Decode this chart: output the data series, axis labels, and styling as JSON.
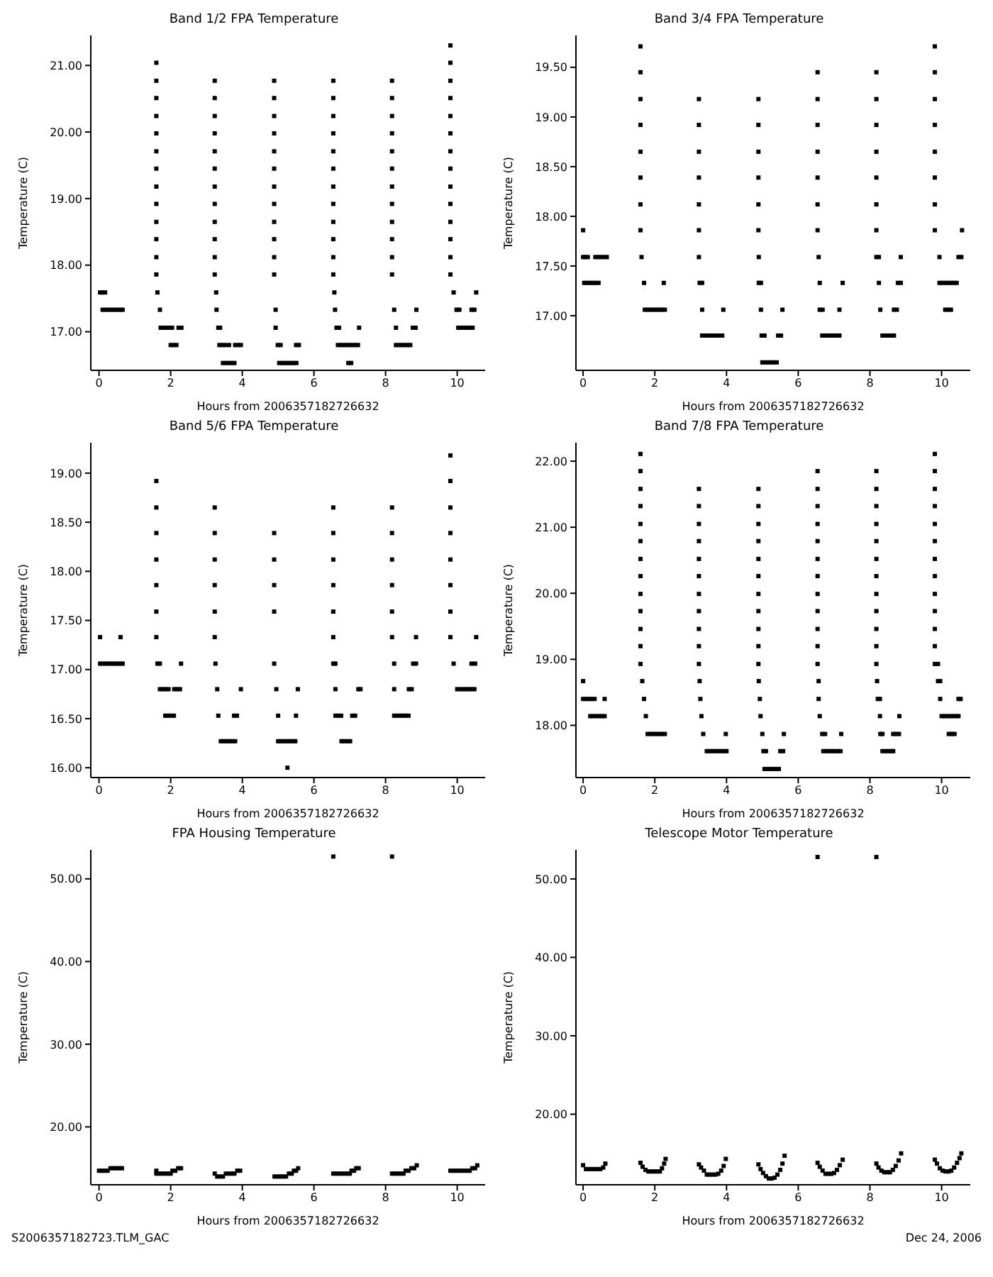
{
  "chart_data": [
    {
      "type": "scatter",
      "title": "Band 1/2 FPA Temperature",
      "xlabel": "Hours from 2006357182726632",
      "ylabel": "Temperature (C)",
      "marker": "square",
      "xlim": [
        -0.23,
        10.78
      ],
      "xticks": [
        0,
        2,
        4,
        6,
        8,
        10
      ],
      "ylim": [
        16.42,
        21.45
      ],
      "yticks": [
        {
          "value": 17,
          "label": "17.00"
        },
        {
          "value": 18,
          "label": "18.00"
        },
        {
          "value": 19,
          "label": "19.00"
        },
        {
          "value": 20,
          "label": "20.00"
        },
        {
          "value": 21,
          "label": "21.00"
        }
      ],
      "series": [
        {
          "color": "#000000",
          "x": [
            0.03,
            0.1,
            0.17,
            0.1,
            0.18,
            0.26,
            0.34,
            0.42,
            0.5,
            0.58,
            0.66,
            1.6,
            1.6,
            1.6,
            1.6,
            1.6,
            1.6,
            1.6,
            1.6,
            1.6,
            1.6,
            1.6,
            1.6,
            1.6,
            1.63,
            1.7,
            1.72,
            1.8,
            1.88,
            1.96,
            2.04,
            2.22,
            2.3,
            2.0,
            2.08,
            2.16,
            3.23,
            3.23,
            3.23,
            3.23,
            3.23,
            3.23,
            3.23,
            3.23,
            3.23,
            3.23,
            3.23,
            3.23,
            3.27,
            3.28,
            3.33,
            3.38,
            3.36,
            3.44,
            3.52,
            3.63,
            3.8,
            3.88,
            3.96,
            3.46,
            3.54,
            3.62,
            3.7,
            3.78,
            4.89,
            4.89,
            4.89,
            4.89,
            4.89,
            4.89,
            4.89,
            4.89,
            4.89,
            4.89,
            4.89,
            4.89,
            4.93,
            4.93,
            4.99,
            5.07,
            5.5,
            5.58,
            5.03,
            5.11,
            5.19,
            5.27,
            5.35,
            5.43,
            5.51,
            6.54,
            6.54,
            6.54,
            6.54,
            6.54,
            6.54,
            6.54,
            6.54,
            6.54,
            6.54,
            6.54,
            6.54,
            6.57,
            6.59,
            6.63,
            6.7,
            7.26,
            6.67,
            6.75,
            6.83,
            6.91,
            6.99,
            7.07,
            7.15,
            7.23,
            6.96,
            7.04,
            8.18,
            8.18,
            8.18,
            8.18,
            8.18,
            8.18,
            8.18,
            8.18,
            8.18,
            8.18,
            8.18,
            8.18,
            8.24,
            8.29,
            8.76,
            8.84,
            8.86,
            8.29,
            8.37,
            8.45,
            8.53,
            8.61,
            8.69,
            9.81,
            9.81,
            9.81,
            9.81,
            9.81,
            9.81,
            9.81,
            9.81,
            9.81,
            9.81,
            9.81,
            9.81,
            9.81,
            9.81,
            9.9,
            9.98,
            10.06,
            10.4,
            10.48,
            10.03,
            10.11,
            10.19,
            10.27,
            10.35,
            10.43,
            10.53
          ],
          "values": [
            17.59,
            17.59,
            17.59,
            17.33,
            17.33,
            17.33,
            17.33,
            17.33,
            17.33,
            17.33,
            17.33,
            21.04,
            20.77,
            20.51,
            20.24,
            19.98,
            19.71,
            19.45,
            19.18,
            18.92,
            18.65,
            18.39,
            18.12,
            17.86,
            17.59,
            17.33,
            17.06,
            17.06,
            17.06,
            17.06,
            17.06,
            17.06,
            17.06,
            16.8,
            16.8,
            16.8,
            20.77,
            20.51,
            20.24,
            19.98,
            19.71,
            19.45,
            19.18,
            18.92,
            18.65,
            18.39,
            18.12,
            17.86,
            17.59,
            17.33,
            17.06,
            17.06,
            16.8,
            16.8,
            16.8,
            16.8,
            16.8,
            16.8,
            16.8,
            16.53,
            16.53,
            16.53,
            16.53,
            16.53,
            20.77,
            20.51,
            20.24,
            19.98,
            19.71,
            19.45,
            19.18,
            18.92,
            18.65,
            18.39,
            18.12,
            17.86,
            17.33,
            17.06,
            16.8,
            16.8,
            16.8,
            16.8,
            16.53,
            16.53,
            16.53,
            16.53,
            16.53,
            16.53,
            16.53,
            20.77,
            20.51,
            20.24,
            19.98,
            19.71,
            19.45,
            19.18,
            18.92,
            18.65,
            18.39,
            18.12,
            17.86,
            17.59,
            17.33,
            17.06,
            17.06,
            17.06,
            16.8,
            16.8,
            16.8,
            16.8,
            16.8,
            16.8,
            16.8,
            16.8,
            16.53,
            16.53,
            20.77,
            20.51,
            20.24,
            19.98,
            19.71,
            19.45,
            19.18,
            18.92,
            18.65,
            18.39,
            18.12,
            17.86,
            17.33,
            17.06,
            17.06,
            17.06,
            17.33,
            16.8,
            16.8,
            16.8,
            16.8,
            16.8,
            16.8,
            21.3,
            21.04,
            20.77,
            20.51,
            20.24,
            19.98,
            19.71,
            19.45,
            19.18,
            18.92,
            18.65,
            18.39,
            18.12,
            17.86,
            17.59,
            17.33,
            17.33,
            17.33,
            17.33,
            17.06,
            17.06,
            17.06,
            17.06,
            17.06,
            17.06,
            17.59
          ]
        }
      ]
    },
    {
      "type": "scatter",
      "title": "Band 3/4 FPA Temperature",
      "xlabel": "Hours from 2006357182726632",
      "ylabel": "Temperature (C)",
      "marker": "square",
      "xlim": [
        -0.2,
        10.8
      ],
      "xticks": [
        0,
        2,
        4,
        6,
        8,
        10
      ],
      "ylim": [
        16.45,
        19.82
      ],
      "yticks": [
        {
          "value": 17,
          "label": "17.00"
        },
        {
          "value": 17.5,
          "label": "17.50"
        },
        {
          "value": 18,
          "label": "18.00"
        },
        {
          "value": 18.5,
          "label": "18.50"
        },
        {
          "value": 19,
          "label": "19.00"
        },
        {
          "value": 19.5,
          "label": "19.50"
        }
      ],
      "series": [
        {
          "color": "#000000",
          "x": [
            0,
            0,
            0.06,
            0.13,
            0.34,
            0.42,
            0.5,
            0.58,
            0.66,
            0.03,
            0.11,
            0.19,
            0.27,
            0.35,
            0.43,
            1.6,
            1.6,
            1.6,
            1.6,
            1.6,
            1.6,
            1.6,
            1.6,
            1.63,
            1.7,
            2.25,
            1.72,
            1.8,
            1.88,
            1.96,
            2.04,
            2.12,
            2.2,
            2.28,
            3.23,
            3.23,
            3.23,
            3.23,
            3.23,
            3.23,
            3.23,
            3.25,
            3.32,
            3.32,
            3.91,
            3.32,
            3.4,
            3.48,
            3.56,
            3.64,
            3.72,
            3.8,
            3.88,
            4.89,
            4.89,
            4.89,
            4.89,
            4.89,
            4.89,
            4.9,
            4.9,
            4.96,
            4.96,
            5.56,
            4.98,
            5.06,
            5.44,
            5.52,
            5.0,
            5.08,
            5.16,
            5.24,
            5.32,
            5.4,
            6.54,
            6.54,
            6.54,
            6.54,
            6.54,
            6.54,
            6.54,
            6.57,
            6.6,
            7.24,
            6.6,
            6.68,
            7.15,
            6.67,
            6.75,
            6.83,
            6.91,
            6.99,
            7.07,
            7.15,
            8.18,
            8.18,
            8.18,
            8.18,
            8.18,
            8.18,
            8.18,
            8.18,
            8.25,
            8.86,
            8.25,
            8.78,
            8.86,
            8.29,
            8.67,
            8.75,
            8.35,
            8.43,
            8.51,
            8.59,
            8.67,
            9.81,
            9.81,
            9.81,
            9.81,
            9.81,
            9.81,
            9.81,
            9.81,
            9.94,
            10.47,
            10.55,
            10.57,
            9.94,
            10.02,
            10.1,
            10.18,
            10.26,
            10.34,
            10.42,
            10.1,
            10.18,
            10.26
          ],
          "values": [
            17.86,
            17.59,
            17.59,
            17.59,
            17.59,
            17.59,
            17.59,
            17.59,
            17.59,
            17.33,
            17.33,
            17.33,
            17.33,
            17.33,
            17.33,
            19.71,
            19.45,
            19.18,
            18.92,
            18.65,
            18.39,
            18.12,
            17.86,
            17.59,
            17.33,
            17.33,
            17.06,
            17.06,
            17.06,
            17.06,
            17.06,
            17.06,
            17.06,
            17.06,
            19.18,
            18.92,
            18.65,
            18.39,
            18.12,
            17.86,
            17.59,
            17.33,
            17.33,
            17.06,
            17.06,
            16.8,
            16.8,
            16.8,
            16.8,
            16.8,
            16.8,
            16.8,
            16.8,
            19.18,
            18.92,
            18.65,
            18.39,
            18.12,
            17.86,
            17.59,
            17.33,
            17.33,
            17.06,
            17.06,
            16.8,
            16.8,
            16.8,
            16.8,
            16.53,
            16.53,
            16.53,
            16.53,
            16.53,
            16.53,
            19.45,
            19.18,
            18.92,
            18.65,
            18.39,
            18.12,
            17.86,
            17.59,
            17.33,
            17.33,
            17.06,
            17.06,
            17.06,
            16.8,
            16.8,
            16.8,
            16.8,
            16.8,
            16.8,
            16.8,
            19.45,
            19.18,
            18.92,
            18.65,
            18.39,
            18.12,
            17.86,
            17.59,
            17.59,
            17.59,
            17.33,
            17.33,
            17.33,
            17.06,
            17.06,
            17.06,
            16.8,
            16.8,
            16.8,
            16.8,
            16.8,
            19.71,
            19.45,
            19.18,
            18.92,
            18.65,
            18.39,
            18.12,
            17.86,
            17.59,
            17.59,
            17.59,
            17.86,
            17.33,
            17.33,
            17.33,
            17.33,
            17.33,
            17.33,
            17.33,
            17.06,
            17.06,
            17.06
          ]
        }
      ]
    },
    {
      "type": "scatter",
      "title": "Band 5/6 FPA Temperature",
      "xlabel": "Hours from 2006357182726632",
      "ylabel": "Temperature (C)",
      "marker": "square",
      "xlim": [
        -0.23,
        10.78
      ],
      "xticks": [
        0,
        2,
        4,
        6,
        8,
        10
      ],
      "ylim": [
        15.9,
        19.31
      ],
      "yticks": [
        {
          "value": 16,
          "label": "16.00"
        },
        {
          "value": 16.5,
          "label": "16.50"
        },
        {
          "value": 17,
          "label": "17.00"
        },
        {
          "value": 17.5,
          "label": "17.50"
        },
        {
          "value": 18,
          "label": "18.00"
        },
        {
          "value": 18.5,
          "label": "18.50"
        },
        {
          "value": 19,
          "label": "19.00"
        }
      ],
      "series": [
        {
          "color": "#000000",
          "x": [
            0.03,
            0.6,
            0.03,
            0.11,
            0.19,
            0.27,
            0.35,
            0.43,
            0.51,
            0.59,
            0.66,
            1.6,
            1.6,
            1.6,
            1.6,
            1.6,
            1.6,
            1.6,
            1.63,
            1.7,
            2.29,
            1.7,
            1.78,
            1.86,
            1.94,
            2.1,
            2.18,
            2.26,
            1.85,
            1.93,
            2.01,
            2.09,
            3.23,
            3.23,
            3.23,
            3.23,
            3.23,
            3.23,
            3.25,
            3.3,
            3.96,
            3.33,
            3.77,
            3.85,
            3.4,
            3.48,
            3.56,
            3.64,
            3.72,
            3.8,
            4.89,
            4.89,
            4.89,
            4.89,
            4.89,
            4.95,
            5.55,
            5.0,
            5.5,
            5.0,
            5.08,
            5.16,
            5.24,
            5.32,
            5.4,
            5.48,
            5.26,
            6.54,
            6.54,
            6.54,
            6.54,
            6.54,
            6.54,
            6.54,
            6.6,
            6.6,
            7.24,
            7.3,
            6.6,
            6.68,
            6.76,
            7.07,
            7.15,
            6.77,
            6.85,
            6.93,
            7.01,
            8.18,
            8.18,
            8.18,
            8.18,
            8.18,
            8.18,
            8.24,
            8.24,
            8.65,
            8.73,
            8.24,
            8.32,
            8.4,
            8.48,
            8.56,
            8.64,
            8.77,
            8.85,
            8.85,
            9.81,
            9.81,
            9.81,
            9.81,
            9.81,
            9.81,
            9.81,
            9.81,
            9.9,
            10.0,
            10.08,
            10.16,
            10.24,
            10.32,
            10.4,
            10.48,
            10.4,
            10.5,
            10.53
          ],
          "values": [
            17.33,
            17.33,
            17.06,
            17.06,
            17.06,
            17.06,
            17.06,
            17.06,
            17.06,
            17.06,
            17.06,
            18.92,
            18.65,
            18.39,
            18.12,
            17.86,
            17.59,
            17.33,
            17.06,
            17.06,
            17.06,
            16.8,
            16.8,
            16.8,
            16.8,
            16.8,
            16.8,
            16.8,
            16.53,
            16.53,
            16.53,
            16.53,
            18.65,
            18.39,
            18.12,
            17.86,
            17.59,
            17.33,
            17.06,
            16.8,
            16.8,
            16.53,
            16.53,
            16.53,
            16.27,
            16.27,
            16.27,
            16.27,
            16.27,
            16.27,
            18.39,
            18.12,
            17.86,
            17.59,
            17.06,
            16.8,
            16.8,
            16.53,
            16.53,
            16.27,
            16.27,
            16.27,
            16.27,
            16.27,
            16.27,
            16.27,
            16.0,
            18.65,
            18.39,
            18.12,
            17.86,
            17.59,
            17.33,
            17.06,
            17.06,
            16.8,
            16.8,
            16.8,
            16.53,
            16.53,
            16.53,
            16.53,
            16.53,
            16.27,
            16.27,
            16.27,
            16.27,
            18.65,
            18.39,
            18.12,
            17.86,
            17.59,
            17.33,
            17.06,
            16.8,
            16.8,
            16.8,
            16.53,
            16.53,
            16.53,
            16.53,
            16.53,
            16.53,
            17.06,
            17.06,
            17.33,
            19.18,
            18.92,
            18.65,
            18.39,
            18.12,
            17.86,
            17.59,
            17.33,
            17.06,
            16.8,
            16.8,
            16.8,
            16.8,
            16.8,
            16.8,
            16.8,
            17.06,
            17.06,
            17.33
          ]
        }
      ]
    },
    {
      "type": "scatter",
      "title": "Band 7/8 FPA Temperature",
      "xlabel": "Hours from 2006357182726632",
      "ylabel": "Temperature (C)",
      "marker": "square",
      "xlim": [
        -0.2,
        10.8
      ],
      "xticks": [
        0,
        2,
        4,
        6,
        8,
        10
      ],
      "ylim": [
        17.21,
        22.28
      ],
      "yticks": [
        {
          "value": 18,
          "label": "18.00"
        },
        {
          "value": 19,
          "label": "19.00"
        },
        {
          "value": 20,
          "label": "20.00"
        },
        {
          "value": 21,
          "label": "21.00"
        },
        {
          "value": 22,
          "label": "22.00"
        }
      ],
      "series": [
        {
          "color": "#000000",
          "x": [
            0,
            0,
            0.08,
            0.16,
            0.24,
            0.32,
            0.6,
            0.2,
            0.28,
            0.36,
            0.44,
            0.52,
            0.6,
            1.6,
            1.6,
            1.6,
            1.6,
            1.6,
            1.6,
            1.6,
            1.6,
            1.6,
            1.6,
            1.6,
            1.6,
            1.6,
            1.65,
            1.7,
            1.75,
            1.8,
            1.88,
            1.96,
            2.04,
            2.12,
            2.2,
            2.28,
            3.23,
            3.23,
            3.23,
            3.23,
            3.23,
            3.23,
            3.23,
            3.23,
            3.23,
            3.23,
            3.23,
            3.25,
            3.27,
            3.3,
            3.35,
            3.98,
            3.45,
            3.53,
            3.61,
            3.69,
            3.77,
            3.85,
            3.93,
            4.0,
            4.89,
            4.89,
            4.89,
            4.89,
            4.89,
            4.89,
            4.89,
            4.89,
            4.89,
            4.89,
            4.89,
            4.9,
            4.93,
            4.95,
            5.0,
            5.6,
            5.03,
            5.1,
            5.5,
            5.58,
            5.06,
            5.14,
            5.22,
            5.3,
            5.38,
            5.46,
            6.54,
            6.54,
            6.54,
            6.54,
            6.54,
            6.54,
            6.54,
            6.54,
            6.54,
            6.54,
            6.54,
            6.54,
            6.57,
            6.57,
            6.6,
            6.67,
            6.75,
            7.2,
            6.7,
            6.78,
            6.86,
            6.94,
            7.02,
            7.1,
            7.18,
            8.18,
            8.18,
            8.18,
            8.18,
            8.18,
            8.18,
            8.18,
            8.18,
            8.18,
            8.18,
            8.18,
            8.18,
            8.2,
            8.22,
            8.28,
            8.28,
            8.82,
            8.29,
            8.35,
            8.65,
            8.73,
            8.81,
            8.35,
            8.43,
            8.51,
            8.59,
            8.65,
            9.81,
            9.81,
            9.81,
            9.81,
            9.81,
            9.81,
            9.81,
            9.81,
            9.81,
            9.81,
            9.81,
            9.81,
            9.81,
            9.9,
            9.9,
            9.96,
            9.96,
            10.47,
            10.53,
            10.0,
            10.08,
            10.16,
            10.24,
            10.32,
            10.4,
            10.47,
            10.2,
            10.28,
            10.36
          ],
          "values": [
            18.67,
            18.4,
            18.4,
            18.4,
            18.4,
            18.4,
            18.4,
            18.14,
            18.14,
            18.14,
            18.14,
            18.14,
            18.14,
            22.11,
            21.85,
            21.58,
            21.32,
            21.05,
            20.79,
            20.52,
            20.26,
            19.99,
            19.73,
            19.46,
            19.2,
            18.93,
            18.67,
            18.4,
            18.14,
            17.87,
            17.87,
            17.87,
            17.87,
            17.87,
            17.87,
            17.87,
            21.58,
            21.32,
            21.05,
            20.79,
            20.52,
            20.26,
            19.99,
            19.73,
            19.46,
            19.2,
            18.93,
            18.67,
            18.4,
            18.14,
            17.87,
            17.87,
            17.61,
            17.61,
            17.61,
            17.61,
            17.61,
            17.61,
            17.61,
            17.61,
            21.58,
            21.32,
            21.05,
            20.79,
            20.52,
            20.26,
            19.99,
            19.73,
            19.46,
            19.2,
            18.93,
            18.67,
            18.4,
            18.14,
            17.87,
            17.87,
            17.61,
            17.61,
            17.61,
            17.61,
            17.34,
            17.34,
            17.34,
            17.34,
            17.34,
            17.34,
            21.85,
            21.58,
            21.32,
            21.05,
            20.79,
            20.52,
            20.26,
            19.99,
            19.73,
            19.46,
            19.2,
            18.93,
            18.67,
            18.4,
            18.14,
            17.87,
            17.87,
            17.87,
            17.61,
            17.61,
            17.61,
            17.61,
            17.61,
            17.61,
            17.61,
            21.85,
            21.58,
            21.32,
            21.05,
            20.79,
            20.52,
            20.26,
            19.99,
            19.73,
            19.46,
            19.2,
            18.93,
            18.67,
            18.4,
            18.4,
            18.14,
            18.14,
            17.87,
            17.87,
            17.87,
            17.87,
            17.87,
            17.61,
            17.61,
            17.61,
            17.61,
            17.61,
            22.11,
            21.85,
            21.58,
            21.32,
            21.05,
            20.79,
            20.52,
            20.26,
            19.99,
            19.73,
            19.46,
            19.2,
            18.93,
            18.93,
            18.67,
            18.67,
            18.4,
            18.4,
            18.4,
            18.14,
            18.14,
            18.14,
            18.14,
            18.14,
            18.14,
            18.14,
            17.87,
            17.87,
            17.87
          ]
        }
      ]
    },
    {
      "type": "scatter",
      "title": "FPA Housing Temperature",
      "xlabel": "Hours from 2006357182726632",
      "ylabel": "Temperature (C)",
      "marker": "square",
      "xlim": [
        -0.23,
        10.78
      ],
      "xticks": [
        0,
        2,
        4,
        6,
        8,
        10
      ],
      "ylim": [
        13.0,
        53.5
      ],
      "yticks": [
        {
          "value": 20,
          "label": "20.00"
        },
        {
          "value": 30,
          "label": "30.00"
        },
        {
          "value": 40,
          "label": "40.00"
        },
        {
          "value": 50,
          "label": "50.00"
        }
      ],
      "annotations": [
        "S2006357182723.TLM_GAC"
      ],
      "series": [
        {
          "color": "#000000",
          "x": [
            0,
            0.08,
            0.16,
            0.24,
            0.32,
            0.4,
            0.48,
            0.56,
            0.64,
            1.6,
            1.6,
            1.68,
            1.76,
            1.84,
            1.92,
            2.0,
            2.05,
            2.13,
            2.21,
            2.29,
            3.23,
            3.3,
            3.38,
            3.46,
            3.54,
            3.62,
            3.7,
            3.78,
            3.86,
            3.94,
            4.9,
            4.98,
            5.06,
            5.14,
            5.22,
            5.3,
            5.38,
            5.44,
            5.5,
            5.56,
            6.54,
            6.62,
            6.7,
            6.78,
            6.86,
            6.94,
            7.0,
            7.05,
            7.12,
            7.18,
            7.25,
            6.54,
            8.18,
            8.26,
            8.34,
            8.42,
            8.5,
            8.56,
            8.64,
            8.72,
            8.8,
            8.87,
            8.18,
            9.81,
            9.89,
            9.97,
            10.05,
            10.13,
            10.21,
            10.29,
            10.35,
            10.42,
            10.5,
            10.56
          ],
          "values": [
            14.7,
            14.7,
            14.7,
            14.7,
            15.0,
            15.0,
            15.0,
            15.0,
            15.0,
            14.7,
            14.35,
            14.35,
            14.35,
            14.35,
            14.35,
            14.35,
            14.7,
            14.7,
            15.0,
            15.0,
            14.35,
            14.0,
            14.0,
            14.0,
            14.35,
            14.35,
            14.35,
            14.35,
            14.7,
            14.7,
            14.0,
            14.0,
            14.0,
            14.0,
            14.0,
            14.35,
            14.35,
            14.7,
            14.7,
            15.0,
            14.35,
            14.35,
            14.35,
            14.35,
            14.35,
            14.35,
            14.35,
            14.7,
            14.7,
            15.0,
            15.0,
            52.7,
            14.35,
            14.35,
            14.35,
            14.35,
            14.35,
            14.7,
            14.7,
            15.0,
            15.0,
            15.35,
            52.7,
            14.7,
            14.7,
            14.7,
            14.7,
            14.7,
            14.7,
            14.7,
            14.7,
            15.0,
            15.0,
            15.35
          ]
        }
      ]
    },
    {
      "type": "scatter",
      "title": "Telescope Motor Temperature",
      "xlabel": "Hours from 2006357182726632",
      "ylabel": "Temperature (C)",
      "marker": "square",
      "xlim": [
        -0.2,
        10.8
      ],
      "xticks": [
        0,
        2,
        4,
        6,
        8,
        10
      ],
      "ylim": [
        11.0,
        53.7
      ],
      "yticks": [
        {
          "value": 20,
          "label": "20.00"
        },
        {
          "value": 30,
          "label": "30.00"
        },
        {
          "value": 40,
          "label": "40.00"
        },
        {
          "value": 50,
          "label": "50.00"
        }
      ],
      "annotations": [
        "Dec 24, 2006"
      ],
      "series": [
        {
          "color": "#000000",
          "x": [
            0,
            0.08,
            0.16,
            0.24,
            0.32,
            0.4,
            0.48,
            0.56,
            0.62,
            1.6,
            1.66,
            1.74,
            1.82,
            1.9,
            1.98,
            2.06,
            2.14,
            2.2,
            2.26,
            2.3,
            3.23,
            3.29,
            3.37,
            3.45,
            3.53,
            3.61,
            3.69,
            3.77,
            3.85,
            3.92,
            3.98,
            4.89,
            4.95,
            5.02,
            5.1,
            5.18,
            5.26,
            5.34,
            5.42,
            5.5,
            5.56,
            5.62,
            6.54,
            6.6,
            6.68,
            6.76,
            6.84,
            6.92,
            7.0,
            7.08,
            7.16,
            7.24,
            6.54,
            8.18,
            8.24,
            8.32,
            8.4,
            8.48,
            8.56,
            8.64,
            8.72,
            8.8,
            8.87,
            8.18,
            9.81,
            9.87,
            9.95,
            10.03,
            10.11,
            10.19,
            10.27,
            10.35,
            10.43,
            10.5,
            10.55
          ],
          "values": [
            13.5,
            13.0,
            13.0,
            13.0,
            13.0,
            13.0,
            13.0,
            13.2,
            13.7,
            13.8,
            13.3,
            12.9,
            12.7,
            12.7,
            12.7,
            12.7,
            12.7,
            13.1,
            13.7,
            14.3,
            13.6,
            13.2,
            12.8,
            12.3,
            12.3,
            12.3,
            12.3,
            12.4,
            12.8,
            13.4,
            14.3,
            13.6,
            13.0,
            12.5,
            12.1,
            11.8,
            11.8,
            11.9,
            12.3,
            12.9,
            13.7,
            14.7,
            13.8,
            13.3,
            12.8,
            12.4,
            12.4,
            12.4,
            12.5,
            12.9,
            13.5,
            14.2,
            52.8,
            13.7,
            13.2,
            12.8,
            12.6,
            12.6,
            12.6,
            12.9,
            13.4,
            14.1,
            15.0,
            52.8,
            14.2,
            13.7,
            13.1,
            12.8,
            12.7,
            12.7,
            12.8,
            13.2,
            13.8,
            14.4,
            15.0
          ]
        }
      ]
    }
  ]
}
